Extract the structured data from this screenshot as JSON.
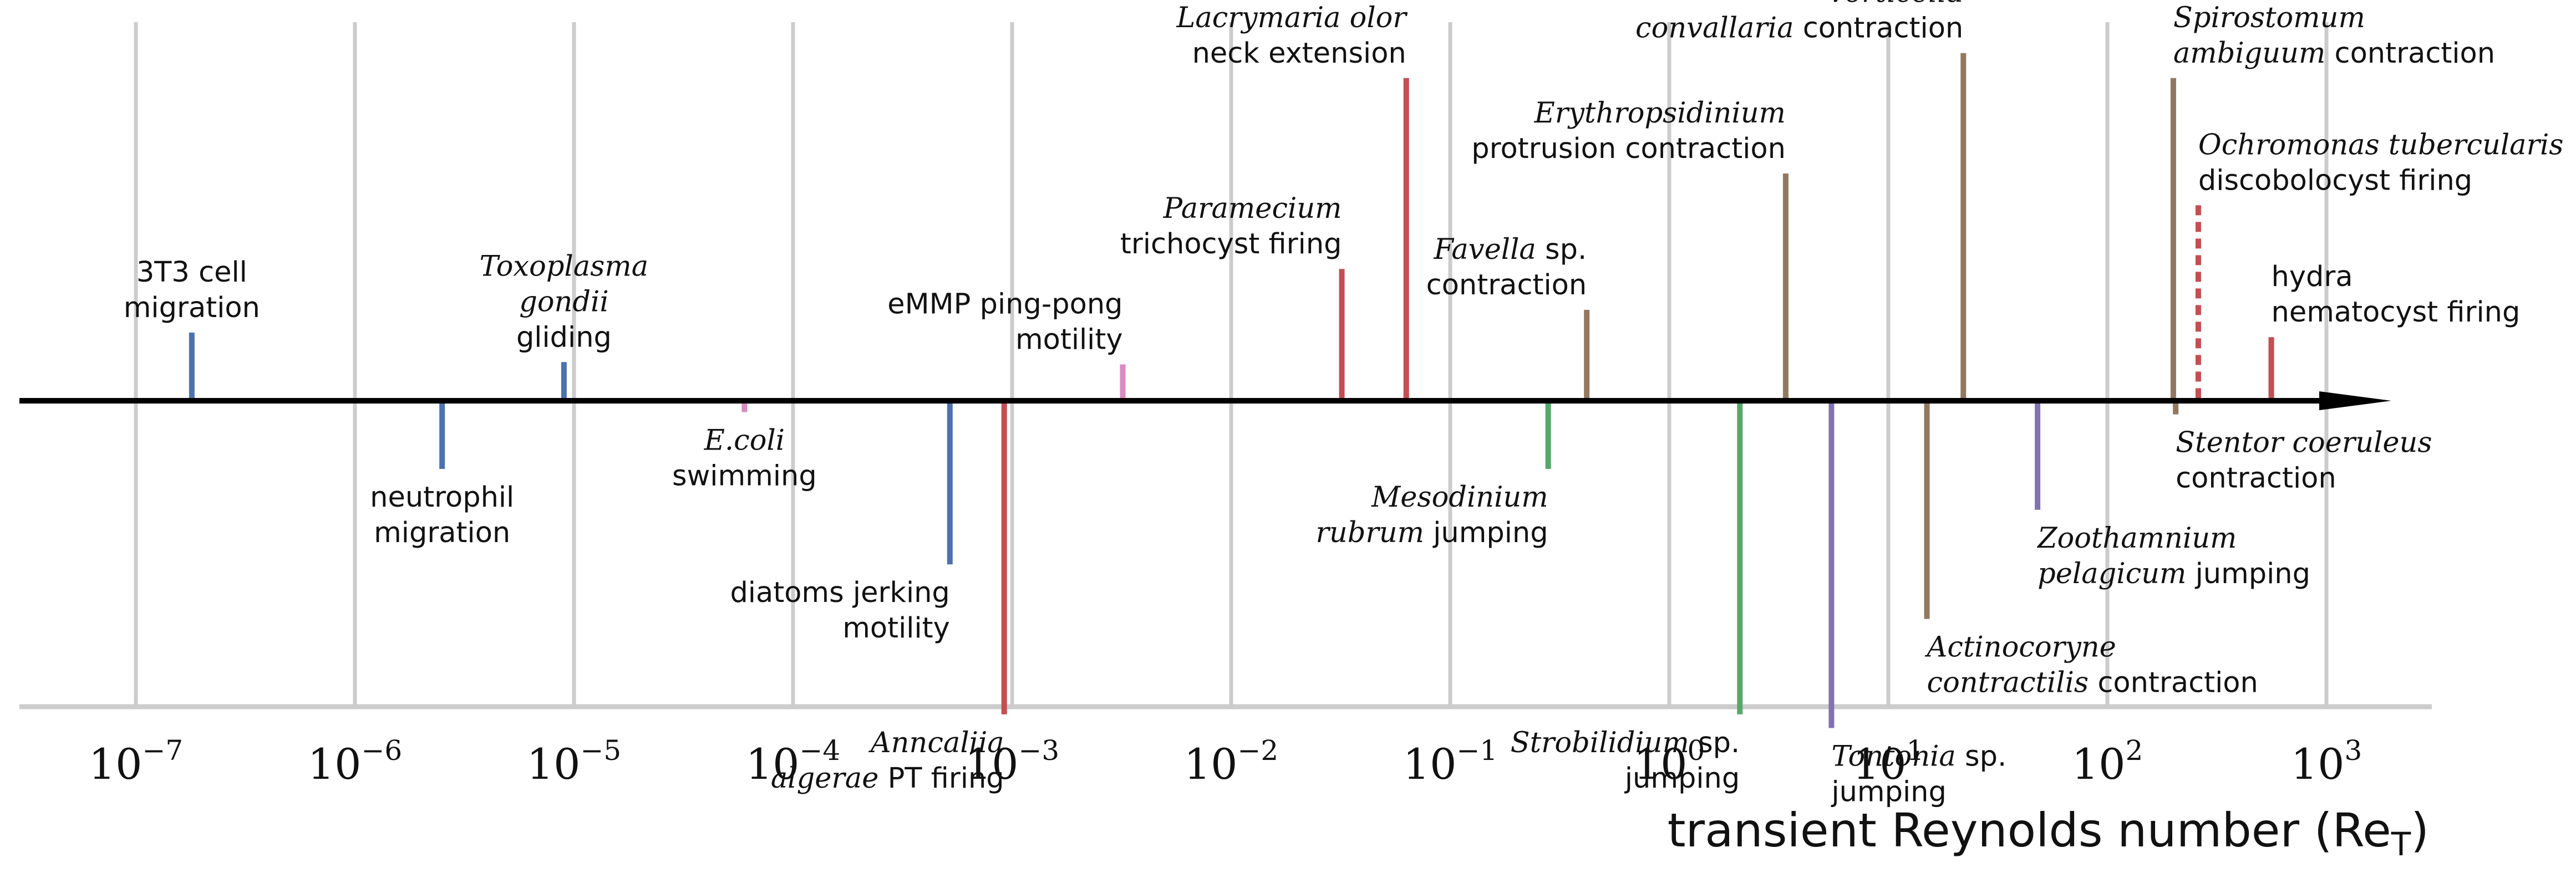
{
  "chart_data": {
    "type": "timeline",
    "xscale": "log",
    "xlim": [
      4e-08,
      3500
    ],
    "grid": true,
    "xlabel": "transient Reynolds number (Re",
    "xlabel_sub": "T",
    "xlabel_close": ")",
    "xticks": [
      {
        "base": "10",
        "exp": "−7",
        "value": 1e-07
      },
      {
        "base": "10",
        "exp": "−6",
        "value": 1e-06
      },
      {
        "base": "10",
        "exp": "−5",
        "value": 1e-05
      },
      {
        "base": "10",
        "exp": "−4",
        "value": 0.0001
      },
      {
        "base": "10",
        "exp": "−3",
        "value": 0.001
      },
      {
        "base": "10",
        "exp": "−2",
        "value": 0.01
      },
      {
        "base": "10",
        "exp": "−1",
        "value": 0.1
      },
      {
        "base": "10",
        "exp": "0",
        "value": 1
      },
      {
        "base": "10",
        "exp": "1",
        "value": 10
      },
      {
        "base": "10",
        "exp": "2",
        "value": 100
      },
      {
        "base": "10",
        "exp": "3",
        "value": 1000
      }
    ],
    "colors": {
      "blue": "#4c72b0",
      "red": "#c44e52",
      "green": "#55a868",
      "brown": "#937860",
      "purple": "#8172b2",
      "pink": "#da8bc3",
      "grid": "#cccccc",
      "axis": "#000000"
    },
    "events": [
      {
        "id": "3t3",
        "value": 1.8e-07,
        "side": "up",
        "stem": 0.3,
        "color": "blue",
        "anchor": "middle",
        "lines": [
          [
            {
              "t": "3T3 cell"
            }
          ],
          [
            {
              "t": "migration"
            }
          ]
        ]
      },
      {
        "id": "neutrophil",
        "value": 2.5e-06,
        "side": "down",
        "stem": 0.3,
        "color": "blue",
        "anchor": "middle",
        "lines": [
          [
            {
              "t": "neutrophil"
            }
          ],
          [
            {
              "t": "migration"
            }
          ]
        ]
      },
      {
        "id": "toxoplasma",
        "value": 9e-06,
        "side": "up",
        "stem": 0.17,
        "color": "blue",
        "anchor": "middle",
        "lines": [
          [
            {
              "t": "Toxoplasma",
              "i": true
            }
          ],
          [
            {
              "t": "gondii",
              "i": true
            }
          ],
          [
            {
              "t": "gliding"
            }
          ]
        ]
      },
      {
        "id": "ecoli",
        "value": 6e-05,
        "side": "down",
        "stem": 0.05,
        "color": "pink",
        "anchor": "middle",
        "lines": [
          [
            {
              "t": "E.coli",
              "i": true
            }
          ],
          [
            {
              "t": "swimming"
            }
          ]
        ]
      },
      {
        "id": "diatoms",
        "value": 0.00052,
        "side": "down",
        "stem": 0.72,
        "color": "blue",
        "anchor": "end",
        "lines": [
          [
            {
              "t": "diatoms jerking"
            }
          ],
          [
            {
              "t": "motility"
            }
          ]
        ]
      },
      {
        "id": "anncaliia",
        "value": 0.00092,
        "side": "down",
        "stem": 1.38,
        "color": "red",
        "anchor": "end",
        "lines": [
          [
            {
              "t": "Anncaliia",
              "i": true
            }
          ],
          [
            {
              "t": "algerae",
              "i": true
            },
            {
              "t": " PT firing"
            }
          ]
        ]
      },
      {
        "id": "emmp",
        "value": 0.0032,
        "side": "up",
        "stem": 0.16,
        "color": "pink",
        "anchor": "end",
        "lines": [
          [
            {
              "t": "eMMP ping-pong"
            }
          ],
          [
            {
              "t": "motility"
            }
          ]
        ]
      },
      {
        "id": "paramecium",
        "value": 0.032,
        "side": "up",
        "stem": 0.58,
        "color": "red",
        "anchor": "end",
        "lines": [
          [
            {
              "t": "Paramecium",
              "i": true
            }
          ],
          [
            {
              "t": "trichocyst firing"
            }
          ]
        ]
      },
      {
        "id": "lacrymaria",
        "value": 0.063,
        "side": "up",
        "stem": 1.42,
        "color": "red",
        "anchor": "end",
        "lines": [
          [
            {
              "t": "Lacrymaria olor",
              "i": true
            }
          ],
          [
            {
              "t": "neck extension"
            }
          ]
        ]
      },
      {
        "id": "mesodinium",
        "value": 0.28,
        "side": "down",
        "stem": 0.3,
        "color": "green",
        "anchor": "end",
        "lines": [
          [
            {
              "t": "Mesodinium",
              "i": true
            }
          ],
          [
            {
              "t": "rubrum",
              "i": true
            },
            {
              "t": " jumping"
            }
          ]
        ]
      },
      {
        "id": "favella",
        "value": 0.42,
        "side": "up",
        "stem": 0.4,
        "color": "brown",
        "anchor": "end",
        "lines": [
          [
            {
              "t": "Favella",
              "i": true
            },
            {
              "t": " sp."
            }
          ],
          [
            {
              "t": "contraction"
            }
          ]
        ]
      },
      {
        "id": "strobilidium",
        "value": 2.1,
        "side": "down",
        "stem": 1.38,
        "color": "green",
        "anchor": "end",
        "lines": [
          [
            {
              "t": "Strobilidium",
              "i": true
            },
            {
              "t": " sp."
            }
          ],
          [
            {
              "t": "jumping"
            }
          ]
        ]
      },
      {
        "id": "erythropsidinium",
        "value": 3.4,
        "side": "up",
        "stem": 1.0,
        "color": "brown",
        "anchor": "end",
        "lines": [
          [
            {
              "t": "Erythropsidinium",
              "i": true
            }
          ],
          [
            {
              "t": "protrusion contraction"
            }
          ]
        ]
      },
      {
        "id": "tontonia",
        "value": 5.5,
        "side": "down",
        "stem": 1.44,
        "color": "purple",
        "anchor": "start",
        "lines": [
          [
            {
              "t": "Tontonia",
              "i": true
            },
            {
              "t": " sp."
            }
          ],
          [
            {
              "t": "jumping"
            }
          ]
        ]
      },
      {
        "id": "actinocoryne",
        "value": 15,
        "side": "down",
        "stem": 0.96,
        "color": "brown",
        "anchor": "start",
        "lines": [
          [
            {
              "t": "Actinocoryne",
              "i": true
            }
          ],
          [
            {
              "t": "contractilis",
              "i": true
            },
            {
              "t": " contraction"
            }
          ]
        ]
      },
      {
        "id": "vorticella",
        "value": 22,
        "side": "up",
        "stem": 1.53,
        "color": "brown",
        "anchor": "end",
        "lines": [
          [
            {
              "t": "Vorticella",
              "i": true
            }
          ],
          [
            {
              "t": "convallaria",
              "i": true
            },
            {
              "t": " contraction"
            }
          ]
        ]
      },
      {
        "id": "zoothamnium",
        "value": 48,
        "side": "down",
        "stem": 0.48,
        "color": "purple",
        "anchor": "start",
        "lines": [
          [
            {
              "t": "Zoothamnium",
              "i": true
            }
          ],
          [
            {
              "t": "pelagicum",
              "i": true
            },
            {
              "t": " jumping"
            }
          ]
        ]
      },
      {
        "id": "spirostomum",
        "value": 200,
        "side": "up",
        "stem": 1.42,
        "color": "brown",
        "anchor": "start",
        "lines": [
          [
            {
              "t": "Spirostomum",
              "i": true
            }
          ],
          [
            {
              "t": "ambiguum",
              "i": true
            },
            {
              "t": " contraction"
            }
          ]
        ]
      },
      {
        "id": "stentor",
        "value": 205,
        "side": "down",
        "stem": 0.06,
        "color": "brown",
        "anchor": "start",
        "lines": [
          [
            {
              "t": "Stentor coeruleus",
              "i": true
            }
          ],
          [
            {
              "t": "contraction"
            }
          ]
        ]
      },
      {
        "id": "ochromonas",
        "value": 260,
        "side": "up",
        "stem": 0.86,
        "color": "red",
        "dashed": true,
        "anchor": "start",
        "lines": [
          [
            {
              "t": "Ochromonas tubercularis",
              "i": true
            }
          ],
          [
            {
              "t": "discobolocyst firing"
            }
          ]
        ]
      },
      {
        "id": "hydra",
        "value": 560,
        "side": "up",
        "stem": 0.28,
        "color": "red",
        "anchor": "start",
        "lines": [
          [
            {
              "t": "hydra"
            }
          ],
          [
            {
              "t": "nematocyst firing"
            }
          ]
        ]
      }
    ]
  }
}
